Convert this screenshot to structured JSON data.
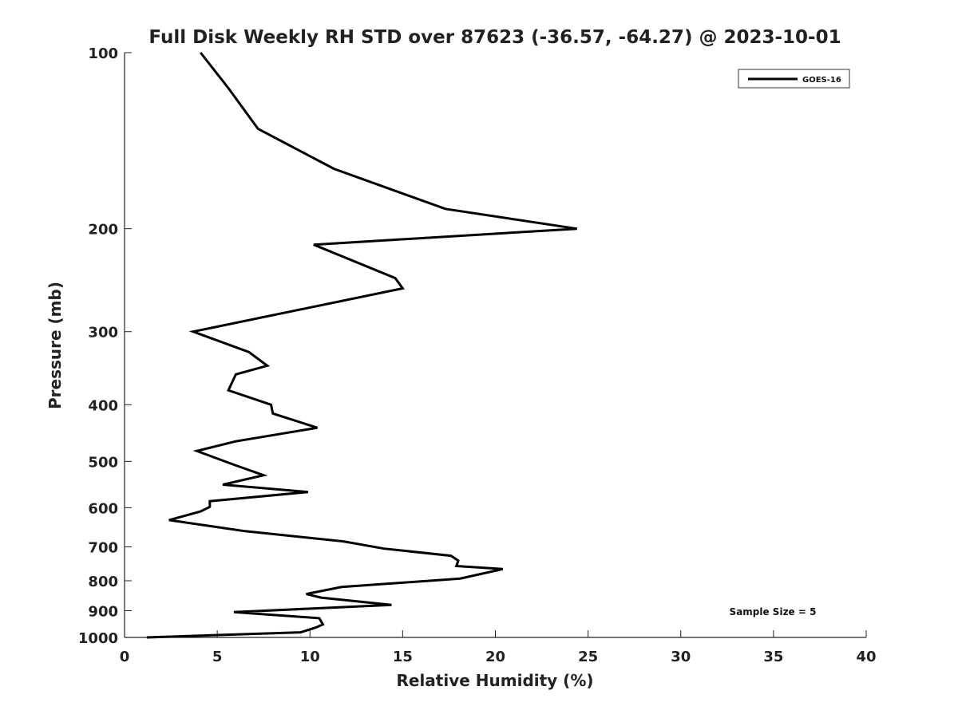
{
  "chart_data": {
    "type": "line",
    "title": "Full Disk Weekly RH STD over 87623 (-36.57, -64.27) @ 2023-10-01",
    "xlabel": "Relative Humidity (%)",
    "ylabel": "Pressure (mb)",
    "xlim": [
      0,
      40
    ],
    "ylim": [
      1000,
      100
    ],
    "yscale": "log",
    "x_ticks": [
      0,
      5,
      10,
      15,
      20,
      25,
      30,
      35,
      40
    ],
    "y_ticks": [
      100,
      200,
      300,
      400,
      500,
      600,
      700,
      800,
      900,
      1000
    ],
    "grid": false,
    "legend_position": "top-right",
    "line_color": "#000000",
    "series": [
      {
        "name": "GOES-16",
        "x": [
          4.1,
          5.6,
          7.2,
          11.3,
          17.3,
          24.4,
          10.2,
          14.6,
          15.0,
          3.7,
          6.7,
          7.7,
          6.0,
          5.6,
          7.9,
          8.0,
          10.4,
          6.0,
          3.9,
          6.0,
          7.5,
          5.3,
          9.9,
          4.6,
          4.6,
          4.1,
          2.4,
          6.5,
          11.8,
          14.0,
          17.6,
          18.0,
          17.9,
          20.4,
          18.1,
          11.7,
          9.8,
          10.6,
          14.4,
          5.9,
          10.5,
          10.7,
          10.3,
          9.5,
          1.2
        ],
        "y": [
          100,
          115,
          135,
          158,
          185,
          200,
          213,
          243,
          253,
          300,
          325,
          343,
          355,
          378,
          400,
          414,
          438,
          462,
          480,
          508,
          528,
          548,
          564,
          585,
          598,
          609,
          630,
          658,
          685,
          705,
          725,
          739,
          755,
          764,
          793,
          820,
          843,
          855,
          880,
          905,
          927,
          950,
          962,
          980,
          1000
        ]
      }
    ],
    "annotation": "Sample Size = 5"
  }
}
